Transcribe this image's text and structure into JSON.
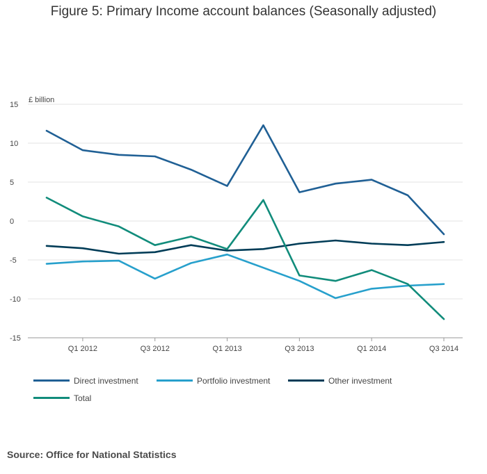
{
  "title": "Figure 5: Primary Income account balances (Seasonally adjusted)",
  "source": "Source: Office for National Statistics",
  "chart_data": {
    "type": "line",
    "ylabel": "£ billion",
    "ylim": [
      -15,
      15
    ],
    "y_ticks": [
      "15",
      "10",
      "5",
      "0",
      "-5",
      "-10",
      "-15"
    ],
    "y_tick_values": [
      15,
      10,
      5,
      0,
      -5,
      -10,
      -15
    ],
    "x": [
      "Q4 2011",
      "Q1 2012",
      "Q2 2012",
      "Q3 2012",
      "Q4 2012",
      "Q1 2013",
      "Q2 2013",
      "Q3 2013",
      "Q4 2013",
      "Q1 2014",
      "Q2 2014",
      "Q3 2014"
    ],
    "x_tick_labels": [
      "",
      "Q1 2012",
      "",
      "Q3 2012",
      "",
      "Q1 2013",
      "",
      "Q3 2013",
      "",
      "Q1 2014",
      "",
      "Q3 2014"
    ],
    "grid": true,
    "legend_position": "bottom",
    "series": [
      {
        "name": "Direct investment",
        "color": "#206095",
        "values": [
          11.6,
          9.1,
          8.5,
          8.3,
          6.6,
          4.5,
          12.3,
          3.7,
          4.8,
          5.3,
          3.3,
          -1.7
        ]
      },
      {
        "name": "Portfolio investment",
        "color": "#27a0cc",
        "values": [
          -5.5,
          -5.2,
          -5.1,
          -7.4,
          -5.4,
          -4.3,
          -6.0,
          -7.7,
          -9.9,
          -8.7,
          -8.3,
          -8.1
        ]
      },
      {
        "name": "Other investment",
        "color": "#003c57",
        "values": [
          -3.2,
          -3.5,
          -4.2,
          -4.0,
          -3.1,
          -3.8,
          -3.6,
          -2.9,
          -2.5,
          -2.9,
          -3.1,
          -2.7
        ]
      },
      {
        "name": "Total",
        "color": "#118c7b",
        "values": [
          3.0,
          0.6,
          -0.7,
          -3.1,
          -2.0,
          -3.6,
          2.7,
          -7.0,
          -7.7,
          -6.3,
          -8.1,
          -12.6
        ]
      }
    ]
  }
}
